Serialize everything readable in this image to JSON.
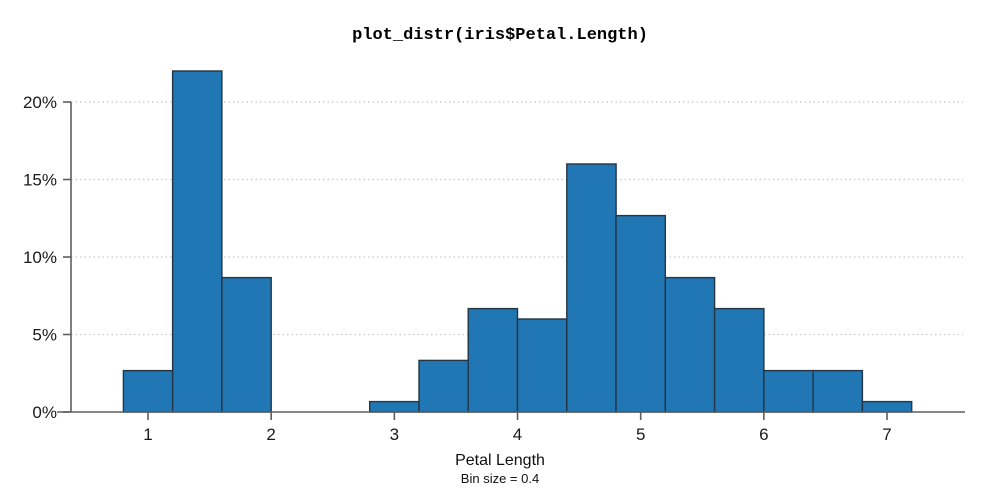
{
  "chart_data": {
    "type": "bar",
    "subtype": "histogram",
    "title": "plot_distr(iris$Petal.Length)",
    "xlabel": "Petal Length",
    "bin_size_label": "Bin size = 0.4",
    "ylabel": "",
    "bin_size": 0.4,
    "xlim": [
      0.25,
      7.65
    ],
    "ylim": [
      0,
      22
    ],
    "grid": "horizontal-dotted",
    "legend": "none",
    "x_ticks": [
      {
        "value": 1,
        "label": "1"
      },
      {
        "value": 2,
        "label": "2"
      },
      {
        "value": 3,
        "label": "3"
      },
      {
        "value": 4,
        "label": "4"
      },
      {
        "value": 5,
        "label": "5"
      },
      {
        "value": 6,
        "label": "6"
      },
      {
        "value": 7,
        "label": "7"
      }
    ],
    "y_ticks": [
      {
        "value": 0,
        "label": "0%"
      },
      {
        "value": 5,
        "label": "5%"
      },
      {
        "value": 10,
        "label": "10%"
      },
      {
        "value": 15,
        "label": "15%"
      },
      {
        "value": 20,
        "label": "20%"
      }
    ],
    "bins": [
      {
        "start": 0.8,
        "end": 1.2,
        "percent": 2.67
      },
      {
        "start": 1.2,
        "end": 1.6,
        "percent": 22.0
      },
      {
        "start": 1.6,
        "end": 2.0,
        "percent": 8.67
      },
      {
        "start": 2.8,
        "end": 3.2,
        "percent": 0.67
      },
      {
        "start": 3.2,
        "end": 3.6,
        "percent": 3.33
      },
      {
        "start": 3.6,
        "end": 4.0,
        "percent": 6.67
      },
      {
        "start": 4.0,
        "end": 4.4,
        "percent": 6.0
      },
      {
        "start": 4.4,
        "end": 4.8,
        "percent": 16.0
      },
      {
        "start": 4.8,
        "end": 5.2,
        "percent": 12.67
      },
      {
        "start": 5.2,
        "end": 5.6,
        "percent": 8.67
      },
      {
        "start": 5.6,
        "end": 6.0,
        "percent": 6.67
      },
      {
        "start": 6.0,
        "end": 6.4,
        "percent": 2.67
      },
      {
        "start": 6.4,
        "end": 6.8,
        "percent": 2.67
      },
      {
        "start": 6.8,
        "end": 7.2,
        "percent": 0.67
      }
    ],
    "colors": {
      "bar_fill": "#2077b4",
      "bar_edge": "#253544",
      "axis": "#5e5e5e",
      "grid": "#c7c7c7",
      "tick_text": "#1a1a1a",
      "background": "#ffffff"
    }
  }
}
